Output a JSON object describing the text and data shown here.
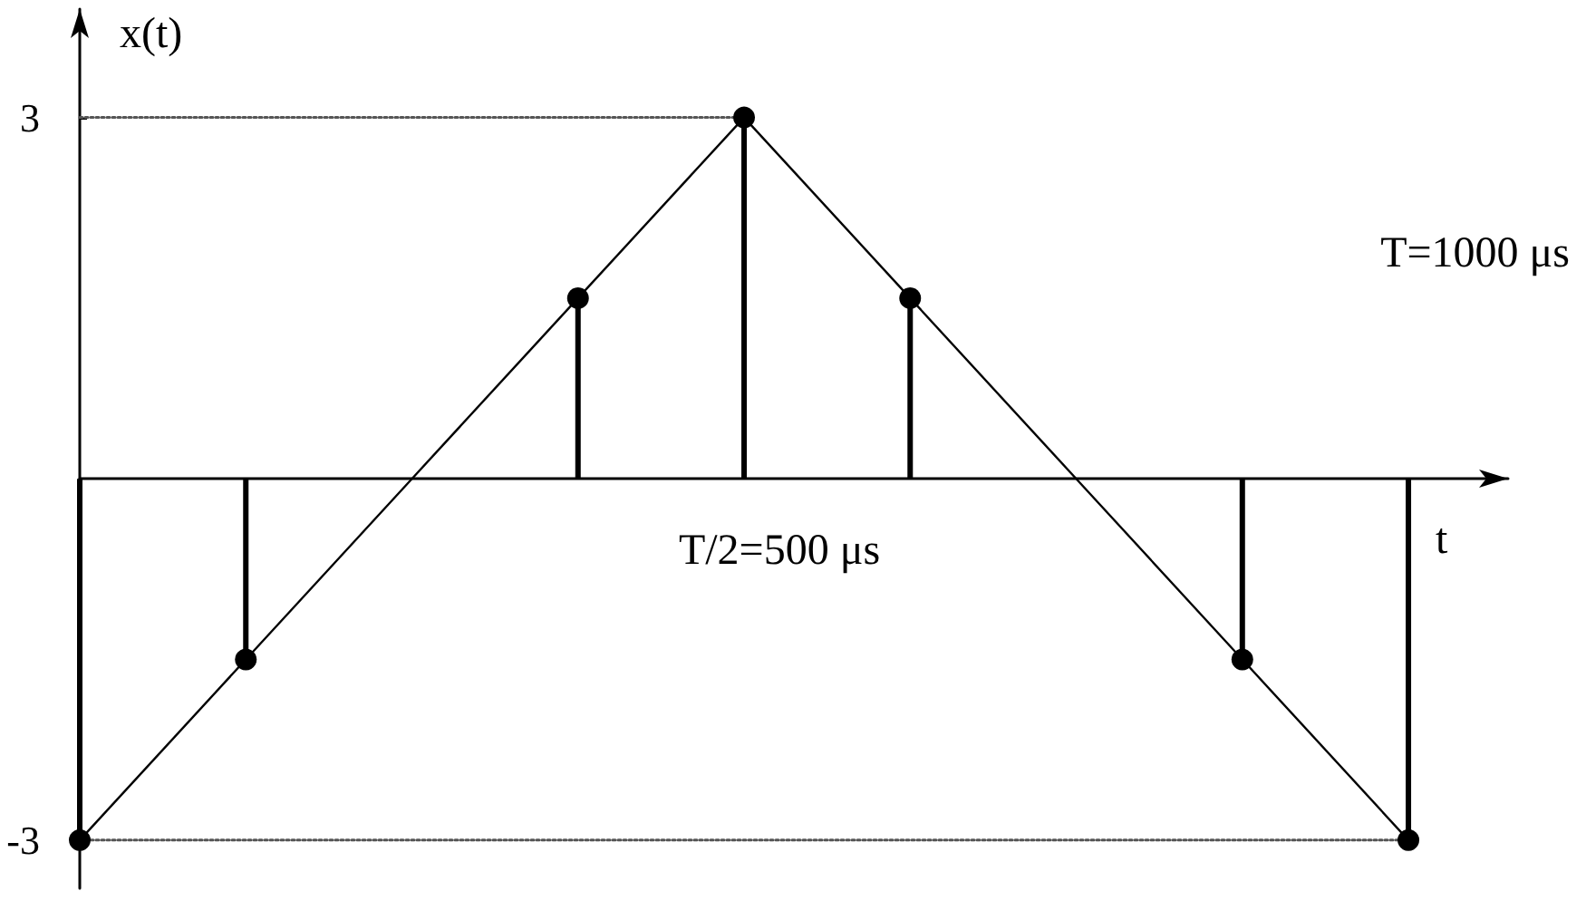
{
  "chart_data": {
    "type": "lollipop",
    "xlabel": "t",
    "ylabel": "x(t)",
    "categories": [
      null,
      null,
      null,
      null,
      null,
      null,
      null,
      null,
      null
    ],
    "ylim": [
      -3.4,
      3.9
    ],
    "yticks": [
      -3,
      3
    ],
    "tick_labels": "y",
    "series": [
      {
        "color": "#000000",
        "marker": "circle",
        "values": [
          -3,
          -1.5,
          null,
          1.5,
          3,
          1.5,
          null,
          -1.5,
          -3
        ]
      },
      {
        "type": "line",
        "color": "#000000",
        "marker": "none",
        "line_style": "solid",
        "values": [
          -3,
          -1.5,
          0,
          1.5,
          3,
          1.5,
          0,
          -1.5,
          -3
        ]
      },
      {
        "type": "line",
        "color": "#555555",
        "marker": "none",
        "line_style": "dotted",
        "values": [
          3,
          3,
          3,
          3,
          3,
          null,
          null,
          null,
          null
        ]
      },
      {
        "type": "line",
        "color": "#555555",
        "marker": "none",
        "line_style": "dotted",
        "values": [
          -3,
          -3,
          -3,
          -3,
          -3,
          -3,
          -3,
          -3,
          -3
        ]
      }
    ],
    "annotations": [
      "T=1000 μs",
      "T/2=500 μs"
    ]
  }
}
